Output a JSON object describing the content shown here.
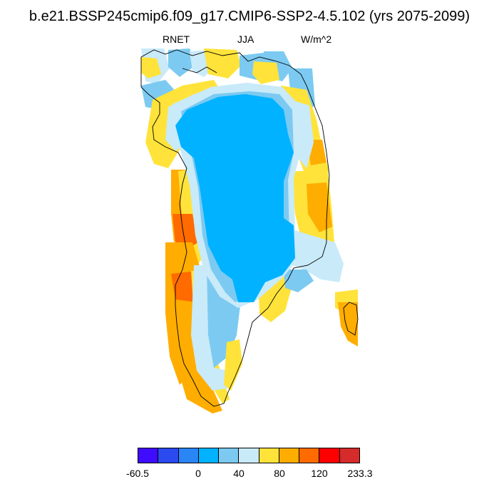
{
  "title": "b.e21.BSSP245cmip6.f09_g17.CMIP6-SSP2-4.5.102 (yrs 2075-2099)",
  "subtitles": {
    "variable": "RNET",
    "season": "JJA",
    "units": "W/m^2"
  },
  "colorbar": {
    "colors": [
      "#3f0cff",
      "#2b4af0",
      "#2a85f5",
      "#00b2ff",
      "#7ccaf1",
      "#c9eaf9",
      "#ffe33a",
      "#ffad00",
      "#ff6b00",
      "#ff0000",
      "#d52b2b"
    ],
    "labels": [
      "-60.5",
      "0",
      "40",
      "80",
      "120",
      "233.3"
    ]
  },
  "map": {
    "region": "Greenland",
    "palette": {
      "ice": "#00b2ff",
      "light_blue": "#7ccaf1",
      "pale_blue": "#c9eaf9",
      "yellow": "#ffe33a",
      "orange": "#ffad00",
      "dark_orange": "#ff6b00"
    }
  }
}
